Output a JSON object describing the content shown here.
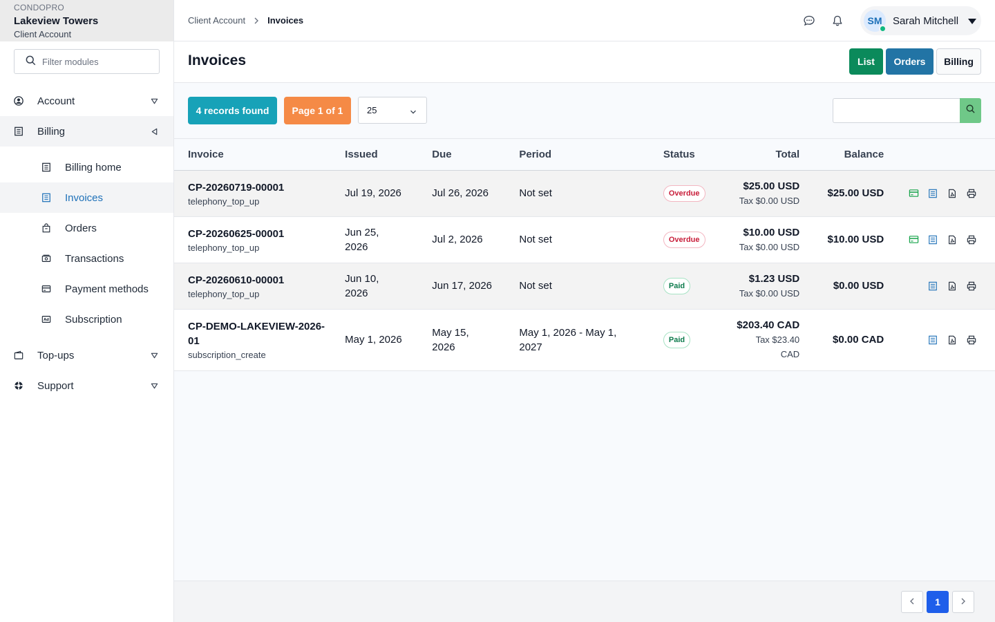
{
  "brand": {
    "app": "CONDOPRO",
    "org": "Lakeview Towers",
    "context": "Client Account"
  },
  "sidebar": {
    "filter_placeholder": "Filter modules",
    "items": [
      {
        "label": "Account",
        "icon": "user-circle-icon",
        "state": "collapsed"
      },
      {
        "label": "Billing",
        "icon": "building-icon",
        "state": "expanded",
        "children": [
          {
            "label": "Billing home",
            "icon": "building-icon"
          },
          {
            "label": "Invoices",
            "icon": "invoice-icon",
            "active": true
          },
          {
            "label": "Orders",
            "icon": "shopping-bag-icon"
          },
          {
            "label": "Transactions",
            "icon": "cash-icon"
          },
          {
            "label": "Payment methods",
            "icon": "credit-card-icon"
          },
          {
            "label": "Subscription",
            "icon": "ad-icon"
          }
        ]
      },
      {
        "label": "Top-ups",
        "icon": "wallet-icon",
        "state": "collapsed"
      },
      {
        "label": "Support",
        "icon": "lifebuoy-icon",
        "state": "collapsed"
      }
    ]
  },
  "topbar": {
    "breadcrumb": [
      "Client Account",
      "Invoices"
    ],
    "user": {
      "initials": "SM",
      "name": "Sarah Mitchell",
      "status": "online"
    }
  },
  "header": {
    "title": "Invoices",
    "buttons": {
      "list": "List",
      "orders": "Orders",
      "billing": "Billing"
    }
  },
  "toolbar": {
    "records": "4 records found",
    "page": "Page 1 of 1",
    "per_page": "25",
    "search_value": ""
  },
  "table": {
    "columns": [
      "Invoice",
      "Issued",
      "Due",
      "Period",
      "Status",
      "Total",
      "Balance"
    ],
    "rows": [
      {
        "invoice": "CP-20260719-00001",
        "type": "telephony_top_up",
        "issued": "Jul 19, 2026",
        "due": "Jul 26, 2026",
        "period": "Not set",
        "status": "Overdue",
        "total": "$25.00 USD",
        "tax": "Tax $0.00 USD",
        "balance": "$25.00 USD",
        "pay_action": true
      },
      {
        "invoice": "CP-20260625-00001",
        "type": "telephony_top_up",
        "issued": "Jun 25, 2026",
        "due": "Jul 2, 2026",
        "period": "Not set",
        "status": "Overdue",
        "total": "$10.00 USD",
        "tax": "Tax $0.00 USD",
        "balance": "$10.00 USD",
        "pay_action": true
      },
      {
        "invoice": "CP-20260610-00001",
        "type": "telephony_top_up",
        "issued": "Jun 10, 2026",
        "due": "Jun 17, 2026",
        "period": "Not set",
        "status": "Paid",
        "total": "$1.23 USD",
        "tax": "Tax $0.00 USD",
        "balance": "$0.00 USD",
        "pay_action": false
      },
      {
        "invoice": "CP-DEMO-LAKEVIEW-2026-01",
        "type": "subscription_create",
        "issued": "May 1, 2026",
        "due": "May 15, 2026",
        "period": "May 1, 2026 - May 1, 2027",
        "status": "Paid",
        "total": "$203.40 CAD",
        "tax": "Tax $23.40 CAD",
        "balance": "$0.00 CAD",
        "pay_action": false
      }
    ]
  },
  "pagination": {
    "current": "1"
  },
  "colors": {
    "list_button": "#0b8a5b",
    "orders_button": "#2274a5",
    "records_pill": "#17a2b8",
    "page_pill": "#f58a46",
    "search_button": "#6fc888",
    "active_page": "#1e5eea",
    "overdue": "#c81e3a",
    "paid": "#0b7a4b"
  }
}
